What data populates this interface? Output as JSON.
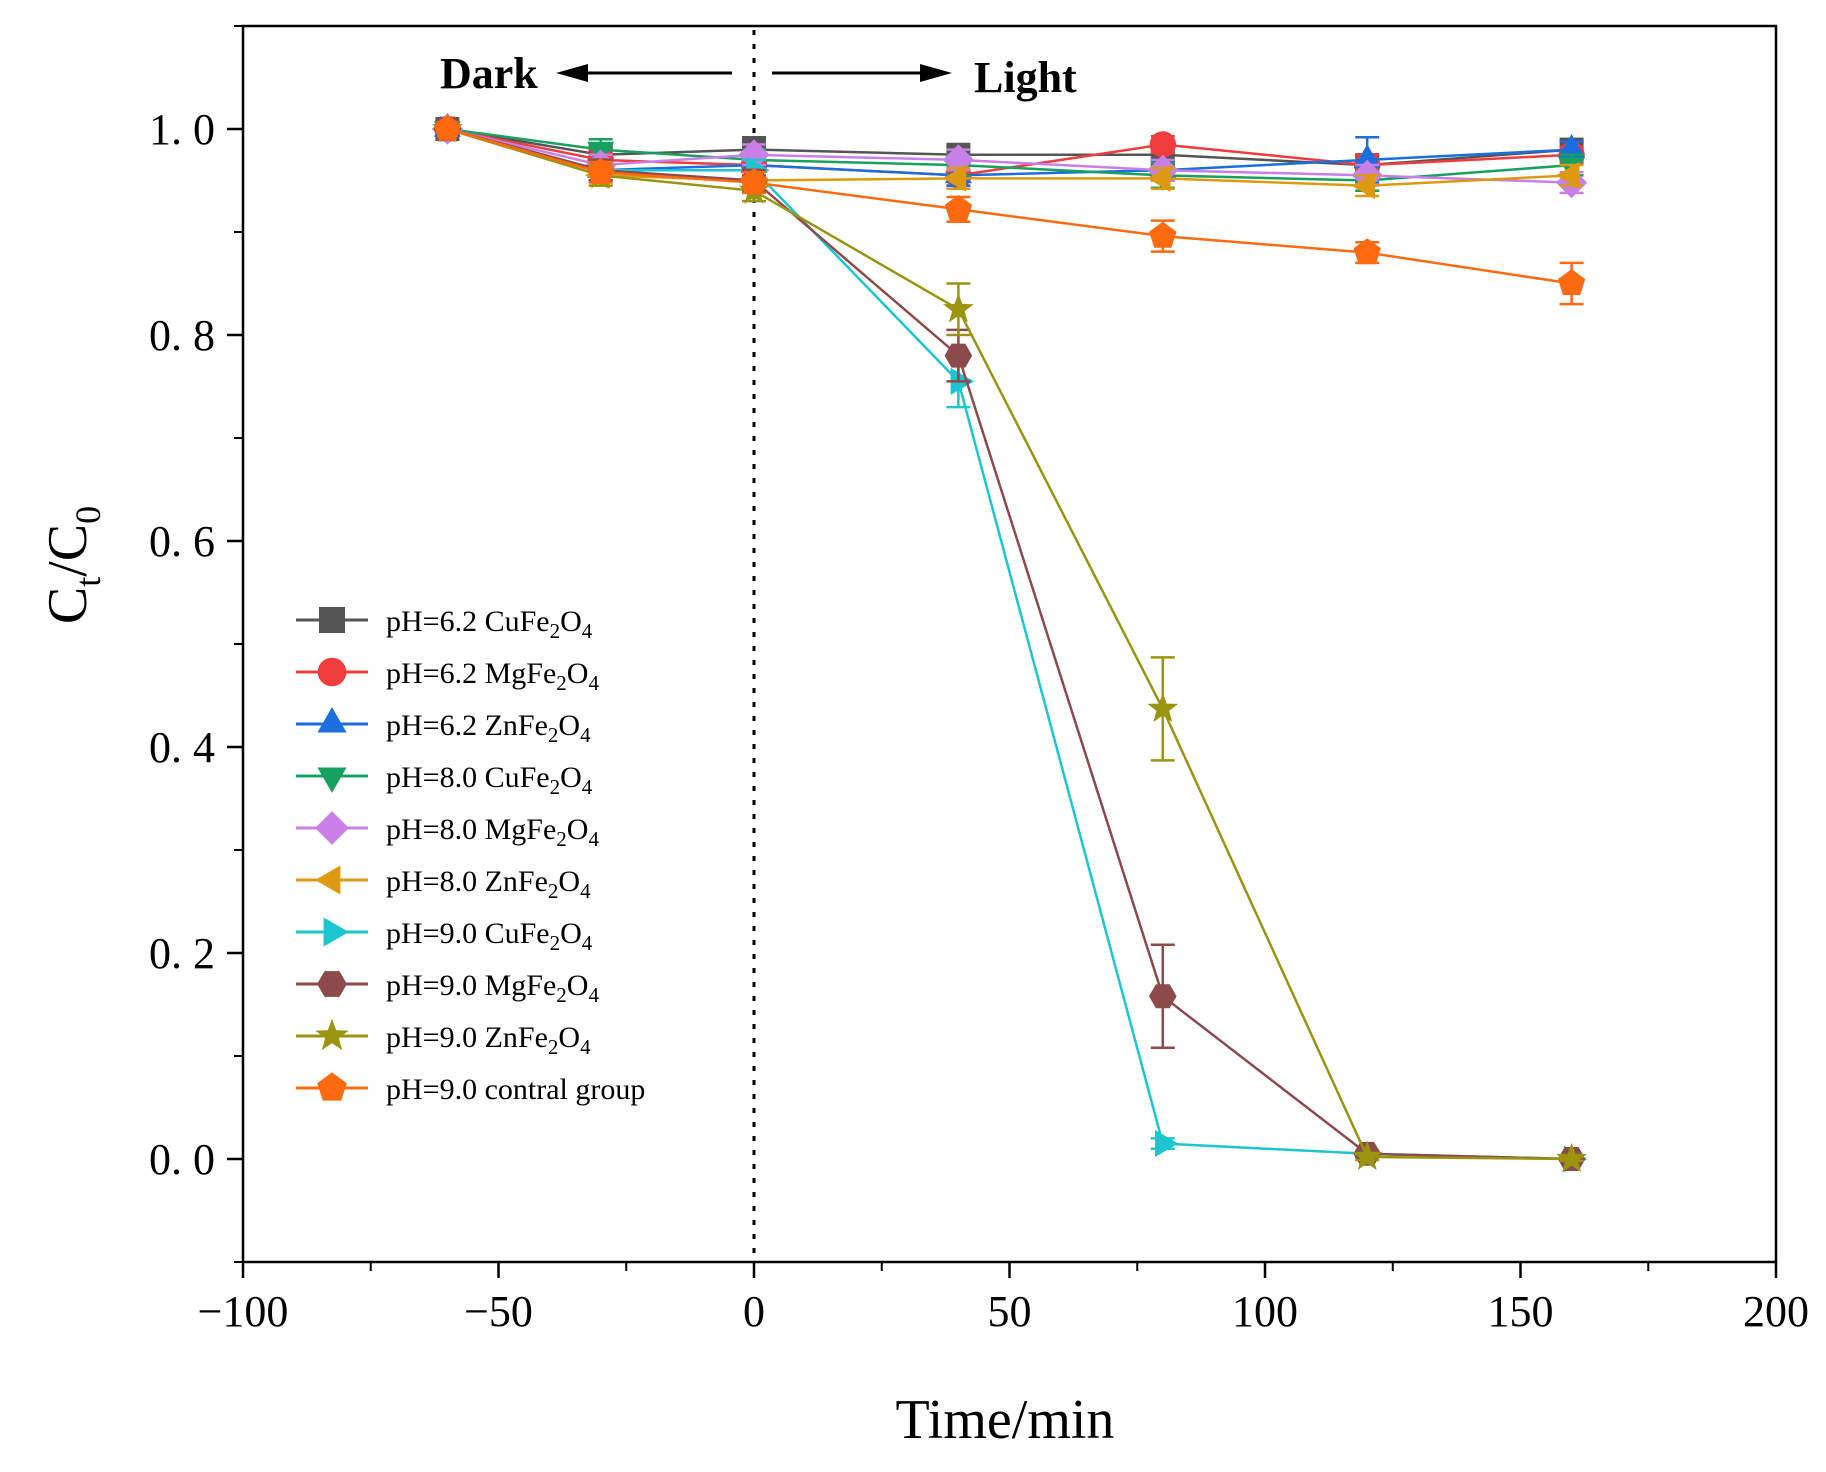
{
  "chart_data": {
    "type": "line",
    "xlabel": "Time/min",
    "ylabel": "C_t/C_0",
    "ylabel_parts": {
      "main1": "C",
      "sub1": "t",
      "slash": "/",
      "main2": "C",
      "sub2": "0"
    },
    "xlim": [
      -100,
      200
    ],
    "ylim": [
      -0.1,
      1.1
    ],
    "x_ticks": [
      -100,
      -50,
      0,
      50,
      100,
      150,
      200
    ],
    "x_tick_labels": [
      "−100",
      "−50",
      "0",
      "50",
      "100",
      "150",
      "200"
    ],
    "y_ticks": [
      0.0,
      0.2,
      0.4,
      0.6,
      0.8,
      1.0
    ],
    "y_tick_labels": [
      "0. 0",
      "0. 2",
      "0. 4",
      "0. 6",
      "0. 8",
      "1. 0"
    ],
    "grid": false,
    "legend_position": "left-middle",
    "annotations": {
      "dark_label": "Dark",
      "light_label": "Light",
      "divider_x": 0
    },
    "x": [
      -60,
      -30,
      0,
      40,
      80,
      120,
      160
    ],
    "series": [
      {
        "name": "pH=6.2 CuFe2O4",
        "label_prefix": "pH=6.2 CuFe",
        "sub1": "2",
        "mid": "O",
        "sub2": "4",
        "color": "#555555",
        "marker": "square",
        "values": [
          1.0,
          0.975,
          0.98,
          0.975,
          0.975,
          0.965,
          0.98
        ],
        "errors": [
          0,
          0.01,
          0.012,
          0.008,
          0.008,
          0.01,
          0.008
        ]
      },
      {
        "name": "pH=6.2 MgFe2O4",
        "label_prefix": "pH=6.2 MgFe",
        "sub1": "2",
        "mid": "O",
        "sub2": "4",
        "color": "#f03c3c",
        "marker": "circle",
        "values": [
          1.0,
          0.97,
          0.965,
          0.955,
          0.985,
          0.965,
          0.975
        ],
        "errors": [
          0,
          0.01,
          0.01,
          0.01,
          0.008,
          0.01,
          0.008
        ]
      },
      {
        "name": "pH=6.2 ZnFe2O4",
        "label_prefix": "pH=6.2 ZnFe",
        "sub1": "2",
        "mid": "O",
        "sub2": "4",
        "color": "#1a6ee0",
        "marker": "triangle-up",
        "values": [
          1.0,
          0.96,
          0.965,
          0.955,
          0.96,
          0.97,
          0.98
        ],
        "errors": [
          0,
          0.01,
          0.012,
          0.01,
          0.01,
          0.022,
          0.008
        ]
      },
      {
        "name": "pH=8.0 CuFe2O4",
        "label_prefix": "pH=8.0 CuFe",
        "sub1": "2",
        "mid": "O",
        "sub2": "4",
        "color": "#18a060",
        "marker": "triangle-down",
        "values": [
          1.0,
          0.98,
          0.97,
          0.965,
          0.955,
          0.95,
          0.965
        ],
        "errors": [
          0,
          0.01,
          0.01,
          0.01,
          0.012,
          0.01,
          0.01
        ]
      },
      {
        "name": "pH=8.0 MgFe2O4",
        "label_prefix": "pH=8.0 MgFe",
        "sub1": "2",
        "mid": "O",
        "sub2": "4",
        "color": "#c880e6",
        "marker": "diamond",
        "values": [
          1.0,
          0.965,
          0.975,
          0.97,
          0.96,
          0.955,
          0.948
        ],
        "errors": [
          0,
          0.01,
          0.01,
          0.01,
          0.01,
          0.01,
          0.01
        ]
      },
      {
        "name": "pH=8.0 ZnFe2O4",
        "label_prefix": "pH=8.0 ZnFe",
        "sub1": "2",
        "mid": "O",
        "sub2": "4",
        "color": "#dd9a10",
        "marker": "triangle-left",
        "values": [
          1.0,
          0.955,
          0.95,
          0.952,
          0.952,
          0.945,
          0.955
        ],
        "errors": [
          0,
          0.01,
          0.01,
          0.01,
          0.01,
          0.01,
          0.01
        ]
      },
      {
        "name": "pH=9.0 CuFe2O4",
        "label_prefix": "pH=9.0 CuFe",
        "sub1": "2",
        "mid": "O",
        "sub2": "4",
        "color": "#1cc6d0",
        "marker": "triangle-right",
        "values": [
          1.0,
          0.96,
          0.96,
          0.755,
          0.015,
          0.005,
          0.0
        ],
        "errors": [
          0,
          0.01,
          0.01,
          0.025,
          0.005,
          0.003,
          0.002
        ]
      },
      {
        "name": "pH=9.0 MgFe2O4",
        "label_prefix": "pH=9.0 MgFe",
        "sub1": "2",
        "mid": "O",
        "sub2": "4",
        "color": "#8c4a4a",
        "marker": "hexagon",
        "values": [
          1.0,
          0.96,
          0.95,
          0.78,
          0.158,
          0.005,
          0.0
        ],
        "errors": [
          0,
          0.01,
          0.01,
          0.025,
          0.05,
          0.003,
          0.002
        ]
      },
      {
        "name": "pH=9.0 ZnFe2O4",
        "label_prefix": "pH=9.0 ZnFe",
        "sub1": "2",
        "mid": "O",
        "sub2": "4",
        "color": "#9a9410",
        "marker": "star",
        "values": [
          1.0,
          0.955,
          0.94,
          0.825,
          0.437,
          0.002,
          0.0
        ],
        "errors": [
          0,
          0.01,
          0.01,
          0.025,
          0.05,
          0.003,
          0.002
        ]
      },
      {
        "name": "pH=9.0 contral group",
        "label_prefix": "pH=9.0 contral group",
        "sub1": "",
        "mid": "",
        "sub2": "",
        "color": "#ff6a10",
        "marker": "pentagon",
        "values": [
          1.0,
          0.958,
          0.948,
          0.922,
          0.896,
          0.88,
          0.85
        ],
        "errors": [
          0,
          0.01,
          0.01,
          0.012,
          0.015,
          0.01,
          0.02
        ]
      }
    ]
  }
}
